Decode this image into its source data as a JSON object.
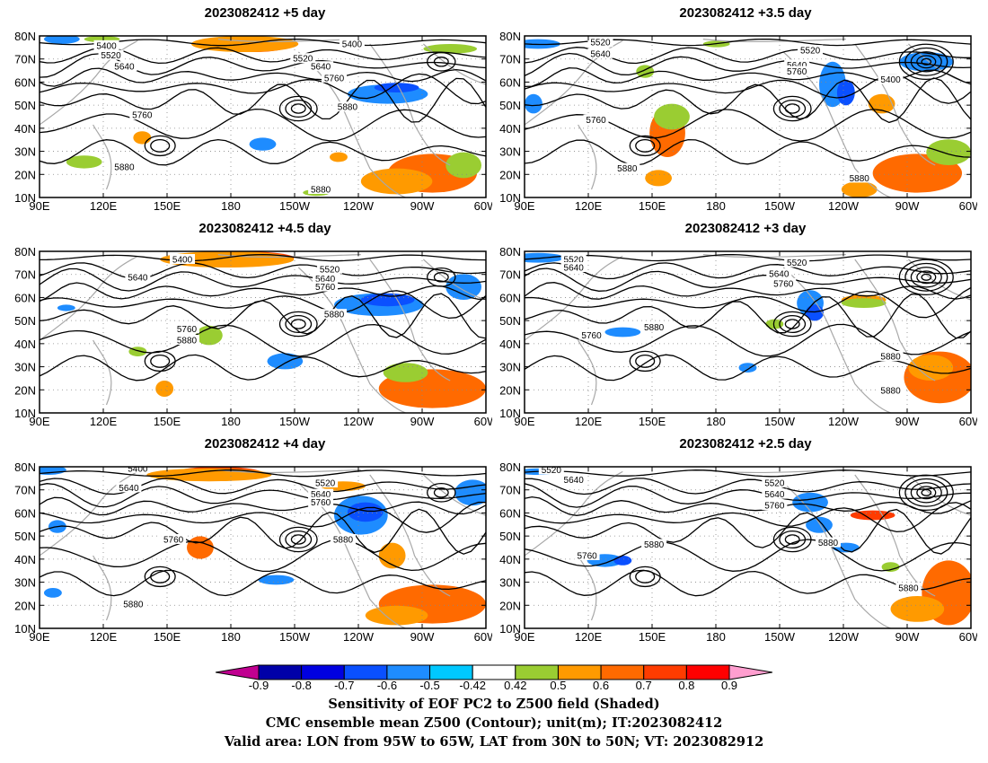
{
  "panels": [
    {
      "title": "2023082412 +5 day",
      "contour_labels": [
        "5400",
        "5520",
        "5640",
        "5400",
        "5520",
        "5640",
        "5760",
        "5760",
        "5880",
        "5880",
        "5880"
      ]
    },
    {
      "title": "2023082412 +3.5 day",
      "contour_labels": [
        "5520",
        "5640",
        "5520",
        "5640",
        "5760",
        "5400",
        "5760",
        "5880",
        "5880"
      ]
    },
    {
      "title": "2023082412 +4.5 day",
      "contour_labels": [
        "5400",
        "5640",
        "5520",
        "5640",
        "5760",
        "5880",
        "5760",
        "5880"
      ]
    },
    {
      "title": "2023082412 +3 day",
      "contour_labels": [
        "5520",
        "5640",
        "5520",
        "5640",
        "5760",
        "5760",
        "5880",
        "5880",
        "5880"
      ]
    },
    {
      "title": "2023082412 +4 day",
      "contour_labels": [
        "5400",
        "5640",
        "5520",
        "5640",
        "5760",
        "5760",
        "5880",
        "5880"
      ]
    },
    {
      "title": "2023082412 +2.5 day",
      "contour_labels": [
        "5520",
        "5640",
        "5520",
        "5640",
        "5760",
        "5760",
        "5880",
        "5880",
        "5880"
      ]
    }
  ],
  "axes": {
    "lat_labels": [
      "80N",
      "70N",
      "60N",
      "50N",
      "40N",
      "30N",
      "20N",
      "10N"
    ],
    "lon_labels": [
      "90E",
      "120E",
      "150E",
      "180",
      "150W",
      "120W",
      "90W",
      "60W"
    ]
  },
  "colorbar": {
    "labels": [
      "-0.9",
      "-0.8",
      "-0.7",
      "-0.6",
      "-0.5",
      "-0.42",
      "0.42",
      "0.5",
      "0.6",
      "0.7",
      "0.8",
      "0.9"
    ],
    "colors": [
      "#c00090",
      "#0000a8",
      "#0000e0",
      "#0a50ff",
      "#1e8cff",
      "#00c8ff",
      "#ffffff",
      "#9acd32",
      "#ff9a00",
      "#ff6a00",
      "#ff3c00",
      "#ff0000",
      "#ff9ecf"
    ]
  },
  "caption": {
    "line1": "Sensitivity of EOF PC2 to Z500 field (Shaded)",
    "line2": "CMC ensemble mean Z500 (Contour); unit(m); IT:2023082412",
    "line3": "Valid area: LON from 95W to 65W, LAT from 30N to 50N; VT: 2023082912"
  }
}
